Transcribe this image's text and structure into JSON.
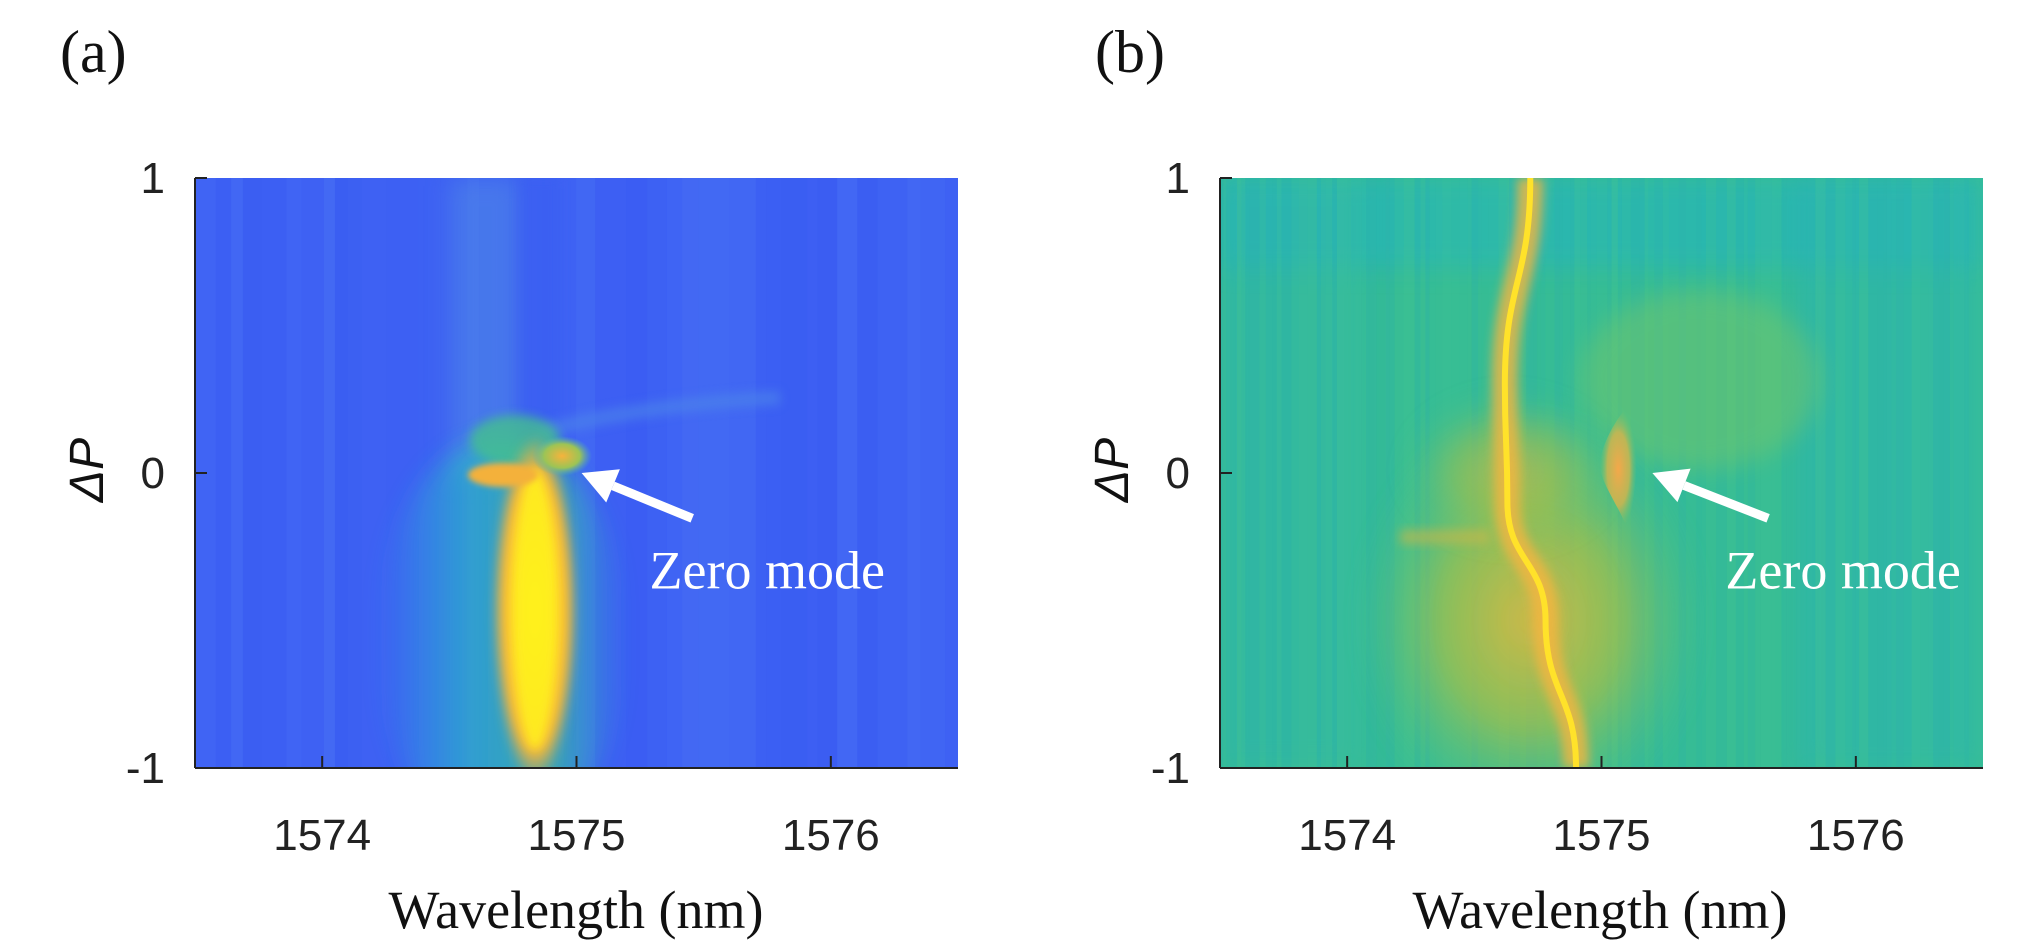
{
  "chart_data": [
    {
      "panel": "(a)",
      "type": "heatmap",
      "xlabel": "Wavelength (nm)",
      "ylabel": "ΔP",
      "xlim": [
        1573.5,
        1576.5
      ],
      "ylim": [
        -1,
        1
      ],
      "xticks": [
        1574,
        1575,
        1576
      ],
      "yticks": [
        -1,
        0,
        1
      ],
      "xtick_labels": [
        "1574",
        "1575",
        "1576"
      ],
      "ytick_labels": [
        "-1",
        "0",
        "1"
      ],
      "colormap": "parula",
      "background_level": 0.18,
      "features": [
        {
          "name": "bright band",
          "x_center": 1574.83,
          "y_from": -1,
          "y_to": 0,
          "peak_level": 1.0
        },
        {
          "name": "zero mode",
          "x_center": 1574.92,
          "y": 0.05,
          "level": 0.78
        }
      ],
      "annotation": {
        "text": "Zero mode",
        "points_to": {
          "x": 1575.02,
          "y": 0.0
        },
        "text_at": {
          "x": 1575.75,
          "y": -0.33
        }
      },
      "colors": {
        "low": "#3b5ef5",
        "high": "#ffee10"
      }
    },
    {
      "panel": "(b)",
      "type": "heatmap",
      "xlabel": "Wavelength (nm)",
      "ylabel": "ΔP",
      "xlim": [
        1573.5,
        1576.5
      ],
      "ylim": [
        -1,
        1
      ],
      "xticks": [
        1574,
        1575,
        1576
      ],
      "yticks": [
        -1,
        0,
        1
      ],
      "xtick_labels": [
        "1574",
        "1575",
        "1576"
      ],
      "ytick_labels": [
        "-1",
        "0",
        "1"
      ],
      "colormap": "parula",
      "background_level": 0.5,
      "features": [
        {
          "name": "curved bright line",
          "points": [
            [
              1574.72,
              1
            ],
            [
              1574.62,
              0.3
            ],
            [
              1574.63,
              -0.1
            ],
            [
              1574.78,
              -0.5
            ],
            [
              1574.9,
              -1
            ]
          ],
          "level": 1.0
        },
        {
          "name": "zero mode",
          "x_center": 1575.08,
          "y": 0.0,
          "level": 0.82
        }
      ],
      "annotation": {
        "text": "Zero mode",
        "points_to": {
          "x": 1575.2,
          "y": 0.0
        },
        "text_at": {
          "x": 1575.95,
          "y": -0.33
        }
      },
      "colors": {
        "low": "#19b5c9",
        "high": "#ffee10"
      }
    }
  ]
}
